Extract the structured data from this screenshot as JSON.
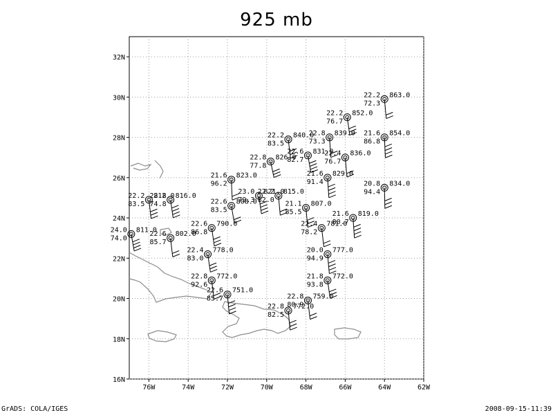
{
  "title": "925 mb",
  "footer": {
    "left": "GrADS: COLA/IGES",
    "right": "2008-09-15-11:39"
  },
  "map": {
    "lon_range": [
      -77,
      -62
    ],
    "lat_range": [
      16,
      33
    ],
    "x_ticks": [
      {
        "lon": -76,
        "label": "76W"
      },
      {
        "lon": -74,
        "label": "74W"
      },
      {
        "lon": -72,
        "label": "72W"
      },
      {
        "lon": -70,
        "label": "70W"
      },
      {
        "lon": -68,
        "label": "68W"
      },
      {
        "lon": -66,
        "label": "66W"
      },
      {
        "lon": -64,
        "label": "64W"
      },
      {
        "lon": -62,
        "label": "62W"
      }
    ],
    "y_ticks": [
      {
        "lat": 16,
        "label": "16N"
      },
      {
        "lat": 18,
        "label": "18N"
      },
      {
        "lat": 20,
        "label": "20N"
      },
      {
        "lat": 22,
        "label": "22N"
      },
      {
        "lat": 24,
        "label": "24N"
      },
      {
        "lat": 26,
        "label": "26N"
      },
      {
        "lat": 28,
        "label": "28N"
      },
      {
        "lat": 30,
        "label": "30N"
      },
      {
        "lat": 32,
        "label": "32N"
      }
    ],
    "grid": true
  },
  "stations": [
    {
      "lon": -64.0,
      "lat": 29.9,
      "t": "22.2",
      "rh": "72.3",
      "hgt": "863.0"
    },
    {
      "lon": -65.9,
      "lat": 29.0,
      "t": "22.2",
      "rh": "76.7",
      "hgt": "852.0"
    },
    {
      "lon": -64.0,
      "lat": 28.0,
      "t": "21.6",
      "rh": "86.8",
      "hgt": "854.0"
    },
    {
      "lon": -66.8,
      "lat": 28.0,
      "t": "22.8",
      "rh": "73.3",
      "hgt": "839.0"
    },
    {
      "lon": -68.9,
      "lat": 27.9,
      "t": "22.2",
      "rh": "83.5",
      "hgt": "840.0"
    },
    {
      "lon": -67.9,
      "lat": 27.1,
      "t": "22.6",
      "rh": "82.7",
      "hgt": "831.0"
    },
    {
      "lon": -66.0,
      "lat": 27.0,
      "t": "22.4",
      "rh": "76.7",
      "hgt": "836.0"
    },
    {
      "lon": -69.8,
      "lat": 26.8,
      "t": "22.8",
      "rh": "77.8",
      "hgt": "826.0"
    },
    {
      "lon": -66.9,
      "lat": 26.0,
      "t": "21.6",
      "rh": "91.4",
      "hgt": "829.0"
    },
    {
      "lon": -71.8,
      "lat": 25.9,
      "t": "21.6",
      "rh": "96.2",
      "hgt": "823.0"
    },
    {
      "lon": -64.0,
      "lat": 25.5,
      "t": "20.8",
      "rh": "94.4",
      "hgt": "834.0"
    },
    {
      "lon": -70.4,
      "lat": 25.1,
      "t": "23.0",
      "rh": "79.3",
      "hgt": "821.0"
    },
    {
      "lon": -69.4,
      "lat": 25.1,
      "t": "22.2",
      "rh": "82.0",
      "hgt": "815.0"
    },
    {
      "lon": -76.0,
      "lat": 24.9,
      "t": "22.2",
      "rh": "83.5",
      "hgt": "812.0"
    },
    {
      "lon": -74.9,
      "lat": 24.9,
      "t": "22.8",
      "rh": "74.8",
      "hgt": "816.0"
    },
    {
      "lon": -71.8,
      "lat": 24.6,
      "t": "22.6",
      "rh": "83.5",
      "hgt": "808.0"
    },
    {
      "lon": -68.0,
      "lat": 24.5,
      "t": "21.1",
      "rh": "85.5",
      "hgt": "807.0"
    },
    {
      "lon": -65.6,
      "lat": 24.0,
      "t": "21.6",
      "rh": "80.7",
      "hgt": "819.0"
    },
    {
      "lon": -67.2,
      "lat": 23.5,
      "t": "22.4",
      "rh": "78.2",
      "hgt": "781.0"
    },
    {
      "lon": -72.8,
      "lat": 23.5,
      "t": "22.6",
      "rh": "86.8",
      "hgt": "790.0"
    },
    {
      "lon": -76.9,
      "lat": 23.2,
      "t": "24.0",
      "rh": "74.0",
      "hgt": "811.0"
    },
    {
      "lon": -74.9,
      "lat": 23.0,
      "t": "22.6",
      "rh": "85.7",
      "hgt": "802.0"
    },
    {
      "lon": -73.0,
      "lat": 22.2,
      "t": "22.4",
      "rh": "83.0",
      "hgt": "778.0"
    },
    {
      "lon": -66.9,
      "lat": 22.2,
      "t": "20.0",
      "rh": "94.9",
      "hgt": "777.0"
    },
    {
      "lon": -72.8,
      "lat": 20.9,
      "t": "22.8",
      "rh": "92.6",
      "hgt": "772.0"
    },
    {
      "lon": -66.9,
      "lat": 20.9,
      "t": "21.8",
      "rh": "93.8",
      "hgt": "772.0"
    },
    {
      "lon": -72.0,
      "lat": 20.2,
      "t": "22.6",
      "rh": "85.7",
      "hgt": "751.0"
    },
    {
      "lon": -67.9,
      "lat": 19.9,
      "t": "22.8",
      "rh": "80.9",
      "hgt": "759.0"
    },
    {
      "lon": -68.9,
      "lat": 19.4,
      "t": "22.8",
      "rh": "82.5",
      "hgt": "772.0"
    }
  ]
}
